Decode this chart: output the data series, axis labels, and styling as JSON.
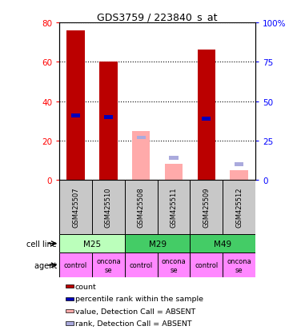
{
  "title": "GDS3759 / 223840_s_at",
  "samples": [
    "GSM425507",
    "GSM425510",
    "GSM425508",
    "GSM425511",
    "GSM425509",
    "GSM425512"
  ],
  "count_values": [
    76,
    60,
    null,
    null,
    66,
    null
  ],
  "count_absent_values": [
    null,
    null,
    25,
    8,
    null,
    5
  ],
  "rank_values": [
    41,
    40,
    null,
    null,
    39,
    null
  ],
  "rank_absent_values": [
    null,
    null,
    27,
    14,
    null,
    10
  ],
  "ylim_left": [
    0,
    80
  ],
  "ylim_right": [
    0,
    100
  ],
  "yticks_left": [
    0,
    20,
    40,
    60,
    80
  ],
  "yticks_right": [
    0,
    25,
    50,
    75,
    100
  ],
  "ytick_labels_left": [
    "0",
    "20",
    "40",
    "60",
    "80"
  ],
  "ytick_labels_right": [
    "0",
    "25",
    "50",
    "75",
    "100%"
  ],
  "bar_width": 0.55,
  "count_color": "#BB0000",
  "count_absent_color": "#FFAAAA",
  "rank_color": "#0000BB",
  "rank_absent_color": "#AAAADD",
  "sample_box_color": "#C8C8C8",
  "cell_line_configs": [
    {
      "label": "M25",
      "start": 0,
      "end": 2,
      "color": "#BBFFBB"
    },
    {
      "label": "M29",
      "start": 2,
      "end": 4,
      "color": "#44CC66"
    },
    {
      "label": "M49",
      "start": 4,
      "end": 6,
      "color": "#44CC66"
    }
  ],
  "agent_configs": [
    {
      "label": "control",
      "start": 0,
      "end": 1,
      "color": "#FF88FF"
    },
    {
      "label": "oncona\nse",
      "start": 1,
      "end": 2,
      "color": "#FF88FF"
    },
    {
      "label": "control",
      "start": 2,
      "end": 3,
      "color": "#FF88FF"
    },
    {
      "label": "oncona\nse",
      "start": 3,
      "end": 4,
      "color": "#FF88FF"
    },
    {
      "label": "control",
      "start": 4,
      "end": 5,
      "color": "#FF88FF"
    },
    {
      "label": "oncona\nse",
      "start": 5,
      "end": 6,
      "color": "#FF88FF"
    }
  ],
  "legend_items": [
    {
      "color": "#BB0000",
      "label": "count"
    },
    {
      "color": "#0000BB",
      "label": "percentile rank within the sample"
    },
    {
      "color": "#FFAAAA",
      "label": "value, Detection Call = ABSENT"
    },
    {
      "color": "#AAAADD",
      "label": "rank, Detection Call = ABSENT"
    }
  ]
}
